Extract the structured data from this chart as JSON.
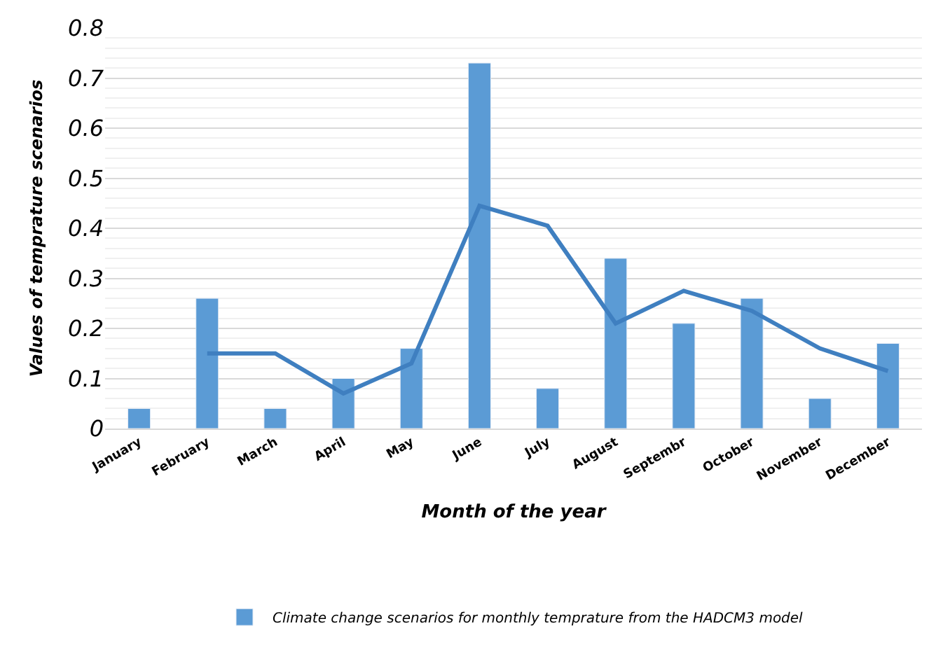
{
  "chart_data": {
    "type": "bar",
    "xlabel": "Month of the year",
    "ylabel": "Values of temprature scenarios",
    "categories": [
      "January",
      "February",
      "March",
      "April",
      "May",
      "June",
      "July",
      "August",
      "Septembr",
      "October",
      "November",
      "December"
    ],
    "series": [
      {
        "name": "Climate change scenarios for monthly temprature from the HADCM3 model",
        "color": "#5b9bd5",
        "values": [
          0.04,
          0.26,
          0.04,
          0.1,
          0.16,
          0.73,
          0.08,
          0.34,
          0.21,
          0.26,
          0.06,
          0.17
        ]
      },
      {
        "type": "line",
        "color": "#3f7fc0",
        "values": [
          null,
          0.15,
          0.15,
          0.07,
          0.13,
          0.445,
          0.405,
          0.21,
          0.275,
          0.235,
          0.16,
          0.115
        ]
      }
    ],
    "ylim": [
      0,
      0.8
    ],
    "yticks": [
      0,
      0.1,
      0.2,
      0.3,
      0.4,
      0.5,
      0.6,
      0.7,
      0.8
    ],
    "grid": "y",
    "legend": "bottom",
    "marker": "none",
    "line_style": "solid"
  }
}
